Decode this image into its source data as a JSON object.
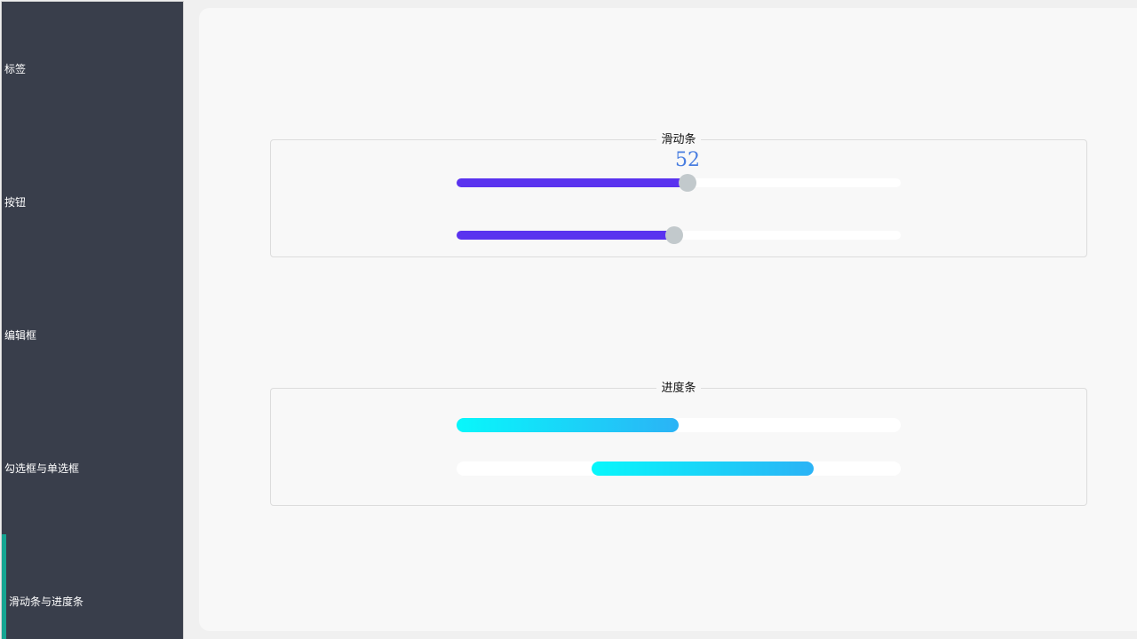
{
  "sidebar": {
    "items": [
      {
        "label": "标签",
        "active": false
      },
      {
        "label": "按钮",
        "active": false
      },
      {
        "label": "编辑框",
        "active": false
      },
      {
        "label": "勾选框与单选框",
        "active": false
      },
      {
        "label": "滑动条与进度条",
        "active": true
      }
    ],
    "accent_color": "#16a592",
    "background_color": "#393e4b"
  },
  "slider_group": {
    "title": "滑动条",
    "sliders": [
      {
        "value": 52,
        "value_label": "52",
        "fraction": 0.52
      },
      {
        "value": 49,
        "fraction": 0.49
      }
    ],
    "fill_color": "#5a33ef",
    "handle_color": "#c2c9cc"
  },
  "progress_group": {
    "title": "进度条",
    "bars": [
      {
        "fraction": 0.5,
        "start_fraction": 0.0
      },
      {
        "fraction": 0.5,
        "start_fraction": 0.304,
        "busy": true
      }
    ],
    "gradient": [
      "#08f7fb",
      "#2bb3f6"
    ]
  }
}
